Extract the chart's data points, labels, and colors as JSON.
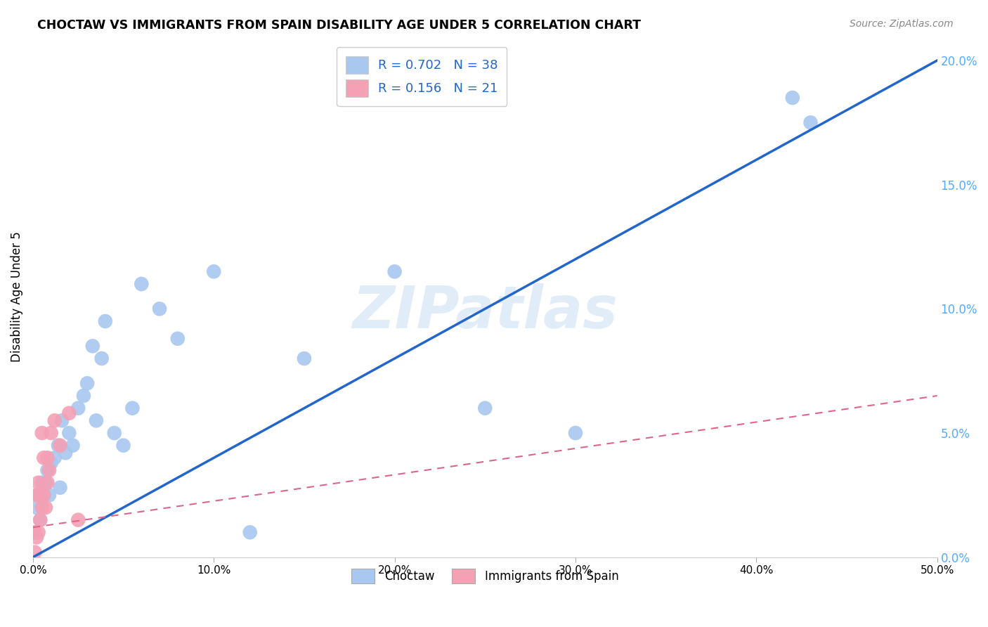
{
  "title": "CHOCTAW VS IMMIGRANTS FROM SPAIN DISABILITY AGE UNDER 5 CORRELATION CHART",
  "source": "Source: ZipAtlas.com",
  "ylabel": "Disability Age Under 5",
  "watermark": "ZIPatlas",
  "choctaw_R": 0.702,
  "choctaw_N": 38,
  "spain_R": 0.156,
  "spain_N": 21,
  "choctaw_color": "#a8c8f0",
  "spain_color": "#f4a0b5",
  "choctaw_line_color": "#2266cc",
  "spain_line_color": "#dd6688",
  "right_label_color": "#55aaff",
  "xlim": [
    0.0,
    0.5
  ],
  "ylim": [
    0.0,
    0.21
  ],
  "xticks": [
    0.0,
    0.1,
    0.2,
    0.3,
    0.4,
    0.5
  ],
  "yticks": [
    0.0,
    0.05,
    0.1,
    0.15,
    0.2
  ],
  "background_color": "#ffffff",
  "grid_color": "#cccccc",
  "choctaw_x": [
    0.001,
    0.002,
    0.003,
    0.004,
    0.005,
    0.006,
    0.007,
    0.008,
    0.009,
    0.01,
    0.012,
    0.014,
    0.015,
    0.016,
    0.018,
    0.02,
    0.022,
    0.025,
    0.028,
    0.03,
    0.033,
    0.035,
    0.038,
    0.04,
    0.045,
    0.05,
    0.055,
    0.06,
    0.07,
    0.08,
    0.1,
    0.12,
    0.15,
    0.2,
    0.25,
    0.3,
    0.42,
    0.43
  ],
  "choctaw_y": [
    0.01,
    0.02,
    0.025,
    0.015,
    0.03,
    0.025,
    0.03,
    0.035,
    0.025,
    0.038,
    0.04,
    0.045,
    0.028,
    0.055,
    0.042,
    0.05,
    0.045,
    0.06,
    0.065,
    0.07,
    0.085,
    0.055,
    0.08,
    0.095,
    0.05,
    0.045,
    0.06,
    0.11,
    0.1,
    0.088,
    0.115,
    0.01,
    0.08,
    0.115,
    0.06,
    0.05,
    0.185,
    0.175
  ],
  "spain_x": [
    0.001,
    0.001,
    0.002,
    0.002,
    0.003,
    0.003,
    0.004,
    0.004,
    0.005,
    0.005,
    0.006,
    0.006,
    0.007,
    0.008,
    0.008,
    0.009,
    0.01,
    0.012,
    0.015,
    0.02,
    0.025
  ],
  "spain_y": [
    0.002,
    0.01,
    0.008,
    0.025,
    0.01,
    0.03,
    0.015,
    0.025,
    0.02,
    0.05,
    0.025,
    0.04,
    0.02,
    0.03,
    0.04,
    0.035,
    0.05,
    0.055,
    0.045,
    0.058,
    0.015
  ]
}
